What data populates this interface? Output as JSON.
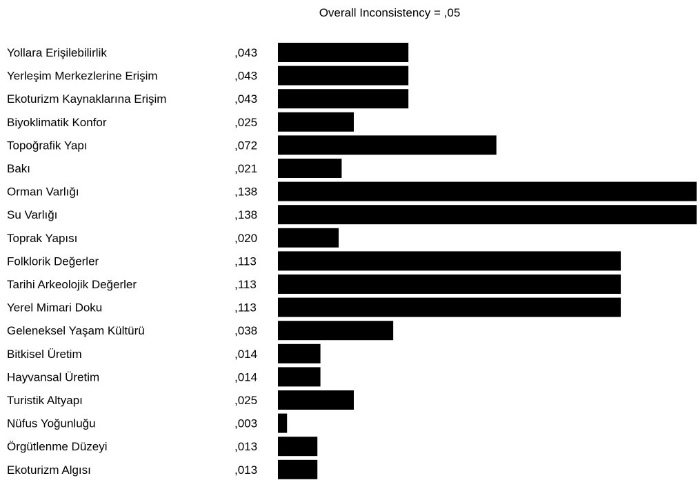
{
  "chart_data": {
    "type": "bar",
    "orientation": "horizontal",
    "title": "Overall Inconsistency = ,05",
    "categories": [
      "Yollara Erişilebilirlik",
      "Yerleşim Merkezlerine Erişim",
      "Ekoturizm Kaynaklarına Erişim",
      "Biyoklimatik Konfor",
      "Topoğrafik Yapı",
      "Bakı",
      "Orman Varlığı",
      "Su Varlığı",
      "Toprak Yapısı",
      "Folklorik Değerler",
      "Tarihi Arkeolojik Değerler",
      "Yerel Mimari Doku",
      "Geleneksel Yaşam Kültürü",
      "Bitkisel Üretim",
      "Hayvansal Üretim",
      "Turistik Altyapı",
      "Nüfus Yoğunluğu",
      "Örgütlenme Düzeyi",
      "Ekoturizm Algısı"
    ],
    "values": [
      0.043,
      0.043,
      0.043,
      0.025,
      0.072,
      0.021,
      0.138,
      0.138,
      0.02,
      0.113,
      0.113,
      0.113,
      0.038,
      0.014,
      0.014,
      0.025,
      0.003,
      0.013,
      0.013
    ],
    "value_labels": [
      ",043",
      ",043",
      ",043",
      ",025",
      ",072",
      ",021",
      ",138",
      ",138",
      ",020",
      ",113",
      ",113",
      ",113",
      ",038",
      ",014",
      ",014",
      ",025",
      ",003",
      ",013",
      ",013"
    ],
    "xlim": [
      0,
      0.138
    ],
    "grid": false,
    "legend": "none",
    "bar_color": "#000000"
  }
}
